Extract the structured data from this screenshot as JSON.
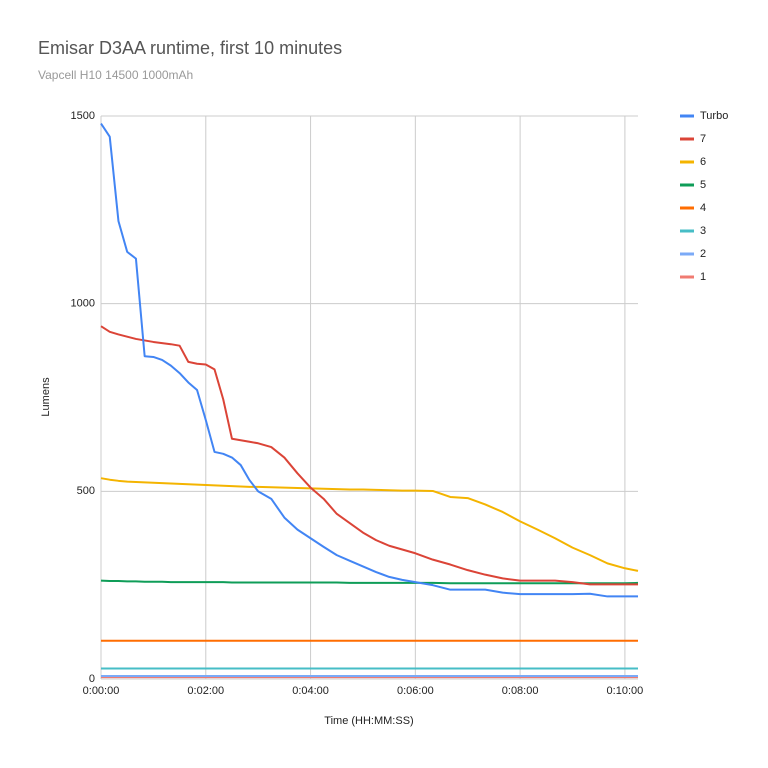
{
  "chart_data": {
    "type": "line",
    "title": "Emisar D3AA runtime, first 10 minutes",
    "subtitle": "Vapcell H10 14500 1000mAh",
    "x_label": "Time (HH:MM:SS)",
    "y_label": "Lumens",
    "x": [
      0,
      10,
      20,
      30,
      40,
      50,
      60,
      70,
      80,
      90,
      100,
      110,
      120,
      130,
      140,
      150,
      160,
      170,
      180,
      195,
      210,
      225,
      240,
      255,
      270,
      285,
      300,
      315,
      330,
      345,
      360,
      380,
      400,
      420,
      440,
      460,
      480,
      500,
      520,
      540,
      560,
      580,
      600,
      615
    ],
    "xlim": [
      0,
      615
    ],
    "xticks": [
      {
        "value": 0,
        "label": "0:00:00"
      },
      {
        "value": 120,
        "label": "0:02:00"
      },
      {
        "value": 240,
        "label": "0:04:00"
      },
      {
        "value": 360,
        "label": "0:06:00"
      },
      {
        "value": 480,
        "label": "0:08:00"
      },
      {
        "value": 600,
        "label": "0:10:00"
      }
    ],
    "ylim": [
      0,
      1500
    ],
    "yticks": [
      0,
      500,
      1000,
      1500
    ],
    "grid": true,
    "legend": "right",
    "series": [
      {
        "name": "Turbo",
        "color": "#4285f4",
        "values": [
          1480,
          1445,
          1220,
          1138,
          1120,
          860,
          858,
          850,
          835,
          815,
          790,
          770,
          690,
          605,
          600,
          590,
          570,
          530,
          500,
          480,
          430,
          398,
          375,
          352,
          330,
          315,
          300,
          285,
          272,
          264,
          258,
          250,
          238,
          238,
          238,
          230,
          226,
          226,
          226,
          226,
          227,
          220,
          220,
          220
        ]
      },
      {
        "name": "7",
        "color": "#db4437",
        "values": [
          940,
          925,
          918,
          912,
          906,
          902,
          898,
          895,
          892,
          888,
          845,
          840,
          838,
          825,
          745,
          640,
          636,
          632,
          628,
          618,
          590,
          548,
          510,
          480,
          440,
          415,
          390,
          370,
          355,
          345,
          335,
          318,
          305,
          290,
          278,
          268,
          262,
          262,
          262,
          258,
          252,
          252,
          252,
          252
        ]
      },
      {
        "name": "6",
        "color": "#f4b400",
        "values": [
          535,
          531,
          528,
          526,
          525,
          524,
          523,
          522,
          521,
          520,
          519,
          518,
          517,
          516,
          515,
          514,
          513,
          512,
          512,
          511,
          510,
          509,
          508,
          507,
          506,
          505,
          505,
          504,
          503,
          502,
          502,
          501,
          485,
          482,
          465,
          445,
          420,
          398,
          375,
          350,
          330,
          308,
          295,
          288
        ]
      },
      {
        "name": "5",
        "color": "#0f9d58",
        "values": [
          262,
          261,
          261,
          260,
          260,
          259,
          259,
          259,
          258,
          258,
          258,
          258,
          258,
          258,
          258,
          257,
          257,
          257,
          257,
          257,
          257,
          257,
          257,
          257,
          257,
          256,
          256,
          256,
          256,
          256,
          256,
          256,
          255,
          255,
          255,
          255,
          255,
          255,
          255,
          255,
          255,
          255,
          255,
          256
        ]
      },
      {
        "name": "4",
        "color": "#ff6d01",
        "values": [
          102,
          102,
          102,
          102,
          102,
          102,
          102,
          102,
          102,
          102,
          102,
          102,
          102,
          102,
          102,
          102,
          102,
          102,
          102,
          102,
          102,
          102,
          102,
          102,
          102,
          102,
          102,
          102,
          102,
          102,
          102,
          102,
          102,
          102,
          102,
          102,
          102,
          102,
          102,
          102,
          102,
          102,
          102,
          102
        ]
      },
      {
        "name": "3",
        "color": "#46bdc6",
        "values": [
          28,
          28,
          28,
          28,
          28,
          28,
          28,
          28,
          28,
          28,
          28,
          28,
          28,
          28,
          28,
          28,
          28,
          28,
          28,
          28,
          28,
          28,
          28,
          28,
          28,
          28,
          28,
          28,
          28,
          28,
          28,
          28,
          28,
          28,
          28,
          28,
          28,
          28,
          28,
          28,
          28,
          28,
          28,
          28
        ]
      },
      {
        "name": "2",
        "color": "#7baaf7",
        "values": [
          8,
          8,
          8,
          8,
          8,
          8,
          8,
          8,
          8,
          8,
          8,
          8,
          8,
          8,
          8,
          8,
          8,
          8,
          8,
          8,
          8,
          8,
          8,
          8,
          8,
          8,
          8,
          8,
          8,
          8,
          8,
          8,
          8,
          8,
          8,
          8,
          8,
          8,
          8,
          8,
          8,
          8,
          8,
          8
        ]
      },
      {
        "name": "1",
        "color": "#f07b72",
        "values": [
          5,
          5,
          5,
          5,
          5,
          5,
          5,
          5,
          5,
          5,
          5,
          5,
          5,
          5,
          5,
          5,
          5,
          5,
          5,
          5,
          5,
          5,
          5,
          5,
          5,
          5,
          5,
          5,
          5,
          5,
          5,
          5,
          5,
          5,
          5,
          5,
          5,
          5,
          5,
          5,
          5,
          5,
          5,
          5
        ]
      }
    ]
  }
}
